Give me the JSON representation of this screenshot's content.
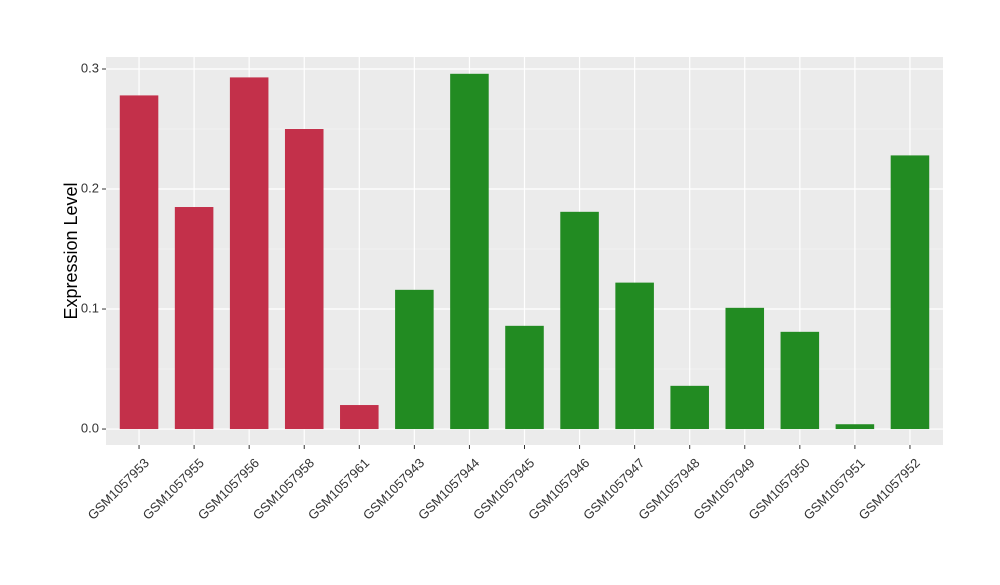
{
  "chart_data": {
    "type": "bar",
    "ylabel": "Expression Level",
    "categories": [
      "GSM1057953",
      "GSM1057955",
      "GSM1057956",
      "GSM1057958",
      "GSM1057961",
      "GSM1057943",
      "GSM1057944",
      "GSM1057945",
      "GSM1057946",
      "GSM1057947",
      "GSM1057948",
      "GSM1057949",
      "GSM1057950",
      "GSM1057951",
      "GSM1057952"
    ],
    "values": [
      0.278,
      0.185,
      0.293,
      0.25,
      0.02,
      0.116,
      0.296,
      0.086,
      0.181,
      0.122,
      0.036,
      0.101,
      0.081,
      0.004,
      0.228
    ],
    "colors": [
      "#c3304a",
      "#c3304a",
      "#c3304a",
      "#c3304a",
      "#c3304a",
      "#228b22",
      "#228b22",
      "#228b22",
      "#228b22",
      "#228b22",
      "#228b22",
      "#228b22",
      "#228b22",
      "#228b22",
      "#228b22"
    ],
    "ylim": [
      -0.0133,
      0.31
    ],
    "yticks": [
      {
        "value": 0,
        "label": "0.0"
      },
      0.1,
      0.2,
      0.3
    ],
    "grid": true
  }
}
